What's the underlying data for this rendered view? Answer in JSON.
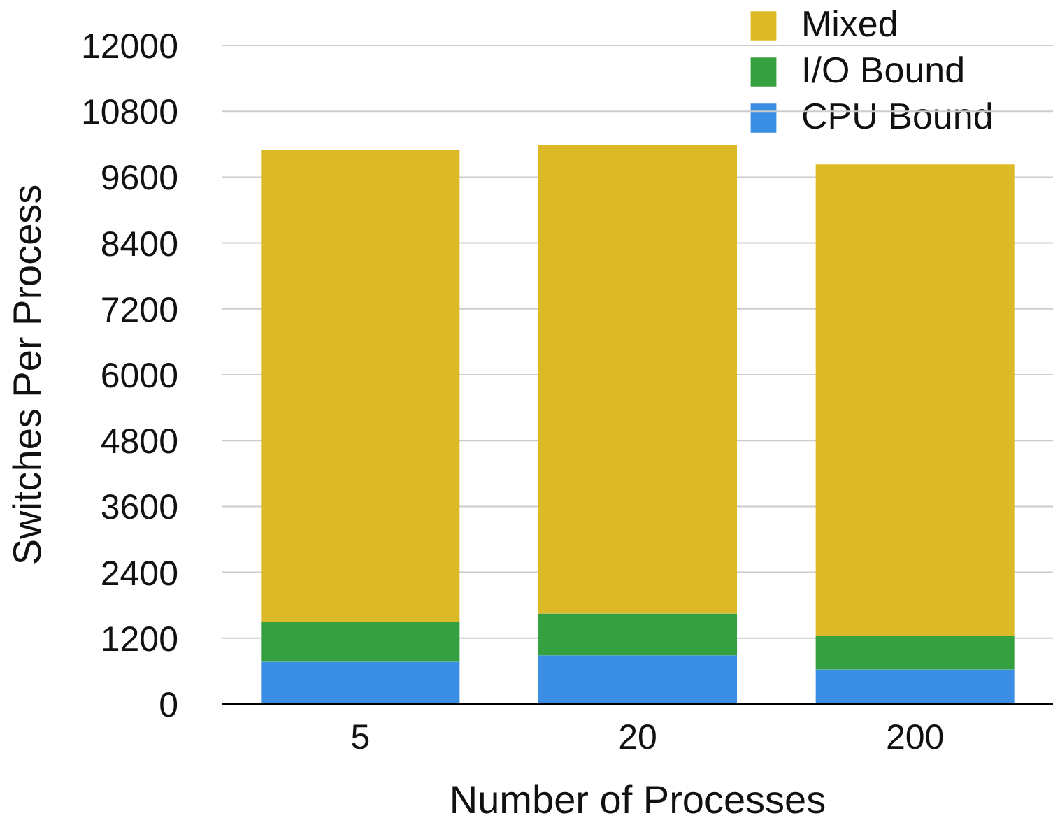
{
  "chart_data": {
    "type": "bar",
    "xlabel": "Number of Processes",
    "ylabel": "Switches Per Process",
    "categories": [
      "5",
      "20",
      "200"
    ],
    "stacked": true,
    "series": [
      {
        "name": "CPU Bound",
        "color": "#3a8ee4",
        "values": [
          770,
          890,
          630
        ]
      },
      {
        "name": "I/O Bound",
        "color": "#34a040",
        "values": [
          730,
          760,
          610
        ]
      },
      {
        "name": "Mixed",
        "color": "#dcb926",
        "values": [
          8600,
          8540,
          8590
        ]
      }
    ],
    "ylim": [
      0,
      12000
    ],
    "yticks": [
      0,
      1200,
      2400,
      3600,
      4800,
      6000,
      7200,
      8400,
      9600,
      10800,
      12000
    ],
    "grid": "y",
    "legend": "top right"
  }
}
